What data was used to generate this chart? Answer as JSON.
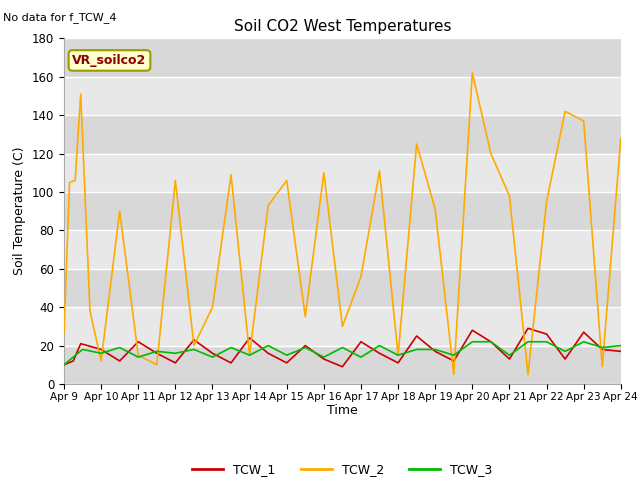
{
  "title": "Soil CO2 West Temperatures",
  "xlabel": "Time",
  "ylabel": "Soil Temperature (C)",
  "no_data_text": "No data for f_TCW_4",
  "annotation_text": "VR_soilco2",
  "ylim": [
    0,
    180
  ],
  "legend_labels": [
    "TCW_1",
    "TCW_2",
    "TCW_3"
  ],
  "legend_colors": [
    "#cc0000",
    "#ffaa00",
    "#00bb00"
  ],
  "xtick_labels": [
    "Apr 9",
    "Apr 10",
    "Apr 11",
    "Apr 12",
    "Apr 13",
    "Apr 14",
    "Apr 15",
    "Apr 16",
    "Apr 17",
    "Apr 18",
    "Apr 19",
    "Apr 20",
    "Apr 21",
    "Apr 22",
    "Apr 23",
    "Apr 24"
  ],
  "fig_facecolor": "#ffffff",
  "axes_facecolor": "#e8e8e8",
  "band_colors": [
    "#d8d8d8",
    "#e8e8e8"
  ],
  "tcw1_x": [
    0,
    0.25,
    0.45,
    1.0,
    1.5,
    2.0,
    2.5,
    3.0,
    3.5,
    4.0,
    4.5,
    5.0,
    5.5,
    6.0,
    6.5,
    7.0,
    7.5,
    8.0,
    8.5,
    9.0,
    9.5,
    10.0,
    10.5,
    11.0,
    11.5,
    12.0,
    12.5,
    13.0,
    13.5,
    14.0,
    14.5,
    15.0
  ],
  "tcw1_y": [
    10,
    12,
    21,
    18,
    12,
    22,
    16,
    11,
    23,
    16,
    11,
    24,
    16,
    11,
    20,
    13,
    9,
    22,
    16,
    11,
    25,
    17,
    12,
    28,
    22,
    13,
    29,
    26,
    13,
    27,
    18,
    17
  ],
  "tcw2_x": [
    0,
    0.15,
    0.3,
    0.45,
    0.7,
    1.0,
    1.5,
    2.0,
    2.5,
    3.0,
    3.5,
    4.0,
    4.5,
    5.0,
    5.5,
    6.0,
    6.5,
    7.0,
    7.5,
    8.0,
    8.5,
    9.0,
    9.5,
    10.0,
    10.5,
    11.0,
    11.5,
    12.0,
    12.5,
    13.0,
    13.5,
    14.0,
    14.5,
    15.0
  ],
  "tcw2_y": [
    27,
    105,
    106,
    151,
    38,
    12,
    90,
    15,
    10,
    106,
    20,
    40,
    109,
    15,
    93,
    106,
    35,
    110,
    30,
    56,
    111,
    15,
    125,
    91,
    5,
    162,
    120,
    98,
    5,
    95,
    142,
    137,
    9,
    128
  ],
  "tcw3_x": [
    0,
    0.5,
    1.0,
    1.5,
    2.0,
    2.5,
    3.0,
    3.5,
    4.0,
    4.5,
    5.0,
    5.5,
    6.0,
    6.5,
    7.0,
    7.5,
    8.0,
    8.5,
    9.0,
    9.5,
    10.0,
    10.5,
    11.0,
    11.5,
    12.0,
    12.5,
    13.0,
    13.5,
    14.0,
    14.5,
    15.0
  ],
  "tcw3_y": [
    10,
    18,
    16,
    19,
    14,
    17,
    16,
    18,
    14,
    19,
    15,
    20,
    15,
    19,
    14,
    19,
    14,
    20,
    15,
    18,
    18,
    15,
    22,
    22,
    15,
    22,
    22,
    17,
    22,
    19,
    20
  ],
  "band_ranges": [
    [
      0,
      20
    ],
    [
      20,
      40
    ],
    [
      40,
      60
    ],
    [
      60,
      80
    ],
    [
      80,
      100
    ],
    [
      100,
      120
    ],
    [
      120,
      140
    ],
    [
      140,
      160
    ],
    [
      160,
      180
    ]
  ]
}
